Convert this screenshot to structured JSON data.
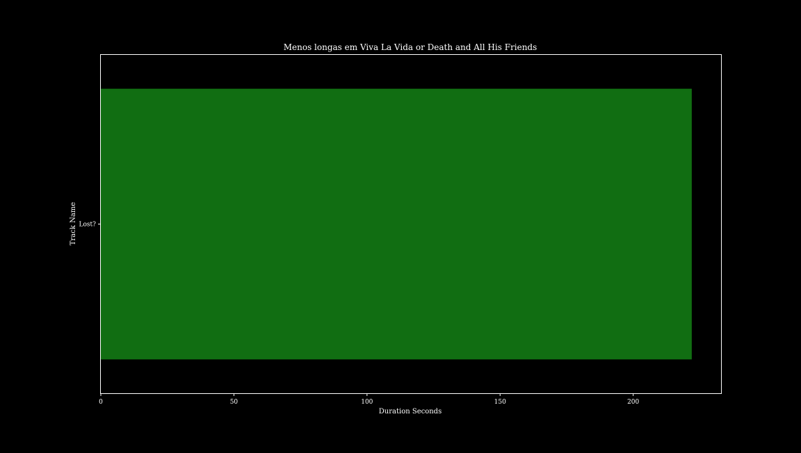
{
  "chart_data": {
    "type": "bar",
    "orientation": "horizontal",
    "title": "Menos longas em Viva La Vida or Death and All His Friends",
    "xlabel": "Duration Seconds",
    "ylabel": "Track Name",
    "categories": [
      "Lost?"
    ],
    "values": [
      222
    ],
    "xlim": [
      0,
      233
    ],
    "xticks": [
      0,
      50,
      100,
      150,
      200
    ],
    "grid": false,
    "legend": "none",
    "colors": {
      "background": "#000000",
      "bar": "#116e12",
      "axes": "#ffffff",
      "text": "#ffffff"
    }
  }
}
